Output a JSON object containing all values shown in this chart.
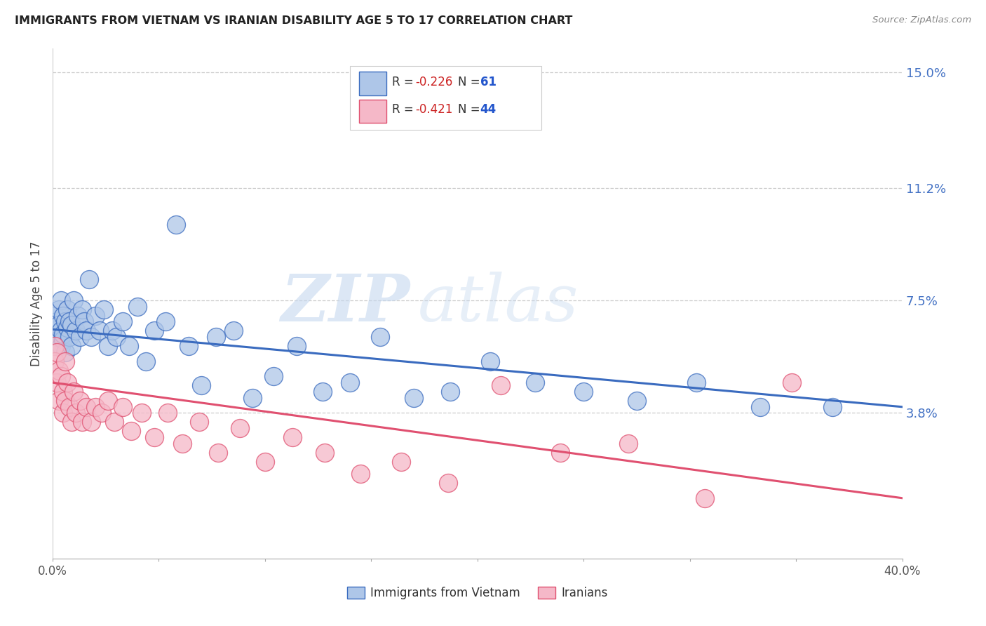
{
  "title": "IMMIGRANTS FROM VIETNAM VS IRANIAN DISABILITY AGE 5 TO 17 CORRELATION CHART",
  "source": "Source: ZipAtlas.com",
  "ylabel": "Disability Age 5 to 17",
  "xmin": 0.0,
  "xmax": 0.4,
  "ymin": -0.01,
  "ymax": 0.158,
  "yticks": [
    0.038,
    0.075,
    0.112,
    0.15
  ],
  "ytick_labels": [
    "3.8%",
    "7.5%",
    "11.2%",
    "15.0%"
  ],
  "xticks": [
    0.0,
    0.05,
    0.1,
    0.15,
    0.2,
    0.25,
    0.3,
    0.35,
    0.4
  ],
  "xtick_labels": [
    "0.0%",
    "",
    "",
    "",
    "",
    "",
    "",
    "",
    "40.0%"
  ],
  "vietnam_R": -0.226,
  "vietnam_N": 61,
  "iran_R": -0.421,
  "iran_N": 44,
  "vietnam_color": "#aec6e8",
  "vietnam_line_color": "#3a6bbf",
  "iran_color": "#f5b8c8",
  "iran_line_color": "#e05070",
  "watermark_zip": "ZIP",
  "watermark_atlas": "atlas",
  "vietnam_x": [
    0.001,
    0.001,
    0.002,
    0.002,
    0.003,
    0.003,
    0.004,
    0.004,
    0.004,
    0.005,
    0.005,
    0.005,
    0.006,
    0.006,
    0.007,
    0.007,
    0.008,
    0.008,
    0.009,
    0.009,
    0.01,
    0.011,
    0.012,
    0.013,
    0.014,
    0.015,
    0.016,
    0.017,
    0.018,
    0.02,
    0.022,
    0.024,
    0.026,
    0.028,
    0.03,
    0.033,
    0.036,
    0.04,
    0.044,
    0.048,
    0.053,
    0.058,
    0.064,
    0.07,
    0.077,
    0.085,
    0.094,
    0.104,
    0.115,
    0.127,
    0.14,
    0.154,
    0.17,
    0.187,
    0.206,
    0.227,
    0.25,
    0.275,
    0.303,
    0.333,
    0.367
  ],
  "vietnam_y": [
    0.07,
    0.065,
    0.068,
    0.063,
    0.072,
    0.067,
    0.065,
    0.06,
    0.075,
    0.062,
    0.07,
    0.064,
    0.068,
    0.058,
    0.066,
    0.072,
    0.063,
    0.068,
    0.067,
    0.06,
    0.075,
    0.065,
    0.07,
    0.063,
    0.072,
    0.068,
    0.065,
    0.082,
    0.063,
    0.07,
    0.065,
    0.072,
    0.06,
    0.065,
    0.063,
    0.068,
    0.06,
    0.073,
    0.055,
    0.065,
    0.068,
    0.1,
    0.06,
    0.047,
    0.063,
    0.065,
    0.043,
    0.05,
    0.06,
    0.045,
    0.048,
    0.063,
    0.043,
    0.045,
    0.055,
    0.048,
    0.045,
    0.042,
    0.048,
    0.04,
    0.04
  ],
  "iran_x": [
    0.001,
    0.001,
    0.002,
    0.002,
    0.003,
    0.003,
    0.004,
    0.005,
    0.005,
    0.006,
    0.006,
    0.007,
    0.008,
    0.009,
    0.01,
    0.011,
    0.013,
    0.014,
    0.016,
    0.018,
    0.02,
    0.023,
    0.026,
    0.029,
    0.033,
    0.037,
    0.042,
    0.048,
    0.054,
    0.061,
    0.069,
    0.078,
    0.088,
    0.1,
    0.113,
    0.128,
    0.145,
    0.164,
    0.186,
    0.211,
    0.239,
    0.271,
    0.307,
    0.348
  ],
  "iran_y": [
    0.06,
    0.055,
    0.058,
    0.048,
    0.052,
    0.042,
    0.05,
    0.045,
    0.038,
    0.055,
    0.042,
    0.048,
    0.04,
    0.035,
    0.045,
    0.038,
    0.042,
    0.035,
    0.04,
    0.035,
    0.04,
    0.038,
    0.042,
    0.035,
    0.04,
    0.032,
    0.038,
    0.03,
    0.038,
    0.028,
    0.035,
    0.025,
    0.033,
    0.022,
    0.03,
    0.025,
    0.018,
    0.022,
    0.015,
    0.047,
    0.025,
    0.028,
    0.01,
    0.048
  ],
  "viet_line_x0": 0.0,
  "viet_line_x1": 0.4,
  "viet_line_y0": 0.0655,
  "viet_line_y1": 0.04,
  "iran_line_x0": 0.0,
  "iran_line_x1": 0.4,
  "iran_line_y0": 0.048,
  "iran_line_y1": 0.01
}
